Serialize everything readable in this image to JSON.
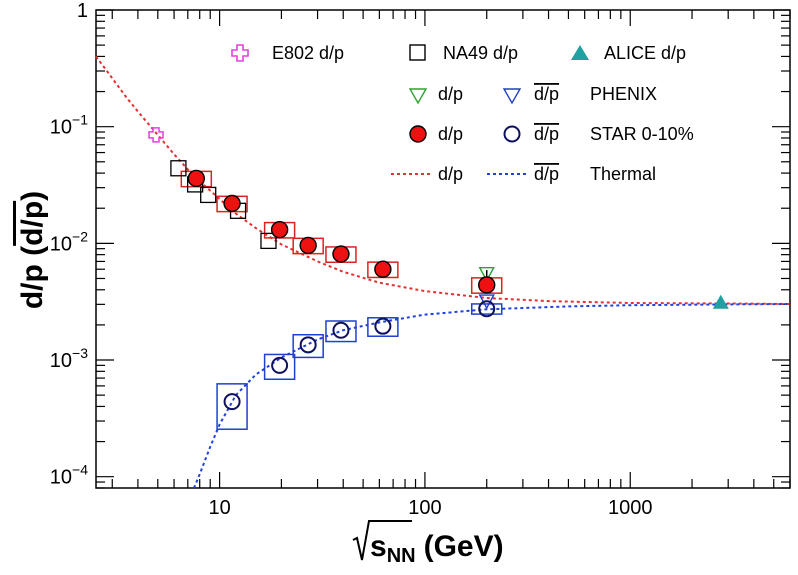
{
  "chart_data": {
    "type": "scatter",
    "xlabel_text": "s",
    "xlabel_sub": "NN",
    "xlabel_unit": "(GeV)",
    "ylabel_main": "d/p (",
    "ylabel_bar": "d/p",
    "ylabel_close": ")",
    "x_scale": "log",
    "y_scale": "log",
    "xlim": [
      2.5,
      6000
    ],
    "ylim": [
      8e-05,
      1
    ],
    "x_ticks": [
      {
        "value": 10,
        "label": "10"
      },
      {
        "value": 100,
        "label": "100"
      },
      {
        "value": 1000,
        "label": "1000"
      }
    ],
    "y_ticks": [
      {
        "value": 1,
        "mantissa": "1",
        "exp": ""
      },
      {
        "value": 0.1,
        "mantissa": "10",
        "exp": "−1"
      },
      {
        "value": 0.01,
        "mantissa": "10",
        "exp": "−2"
      },
      {
        "value": 0.001,
        "mantissa": "10",
        "exp": "−3"
      },
      {
        "value": 0.0001,
        "mantissa": "10",
        "exp": "−4"
      }
    ],
    "grid": false,
    "legend_position": "top-right",
    "series": [
      {
        "name": "E802 d/p",
        "marker": "cross-open",
        "color": "#e040e0",
        "points": [
          {
            "x": 4.9,
            "y": 0.085
          }
        ]
      },
      {
        "name": "NA49 d/p",
        "marker": "square-open",
        "color": "#000000",
        "points": [
          {
            "x": 6.3,
            "y": 0.044
          },
          {
            "x": 7.6,
            "y": 0.032
          },
          {
            "x": 8.8,
            "y": 0.026
          },
          {
            "x": 12.3,
            "y": 0.019
          },
          {
            "x": 17.3,
            "y": 0.0105
          }
        ]
      },
      {
        "name": "ALICE d/p",
        "marker": "triangle-up-filled",
        "color": "#20a0a0",
        "points": [
          {
            "x": 2760,
            "y": 0.0031,
            "yerr": 0.0003
          }
        ]
      },
      {
        "name": "PHENIX d/p",
        "marker": "triangle-down-open",
        "color": "#30a030",
        "points": [
          {
            "x": 200,
            "y": 0.0055,
            "yerr": 0.0004
          }
        ]
      },
      {
        "name": "PHENIX d̄/p̄",
        "marker": "triangle-down-open",
        "color": "#2040c0",
        "points": [
          {
            "x": 200,
            "y": 0.0032
          }
        ]
      },
      {
        "name": "STAR 0-10% d/p",
        "marker": "circle-filled",
        "color": "#ee1111",
        "box_color": "#dd2222",
        "points": [
          {
            "x": 7.7,
            "y": 0.036,
            "sys": 0.15
          },
          {
            "x": 11.5,
            "y": 0.022,
            "sys": 0.15
          },
          {
            "x": 19.6,
            "y": 0.0131,
            "sys": 0.15
          },
          {
            "x": 27,
            "y": 0.0096,
            "sys": 0.15
          },
          {
            "x": 39,
            "y": 0.0081,
            "sys": 0.15
          },
          {
            "x": 62.4,
            "y": 0.006,
            "sys": 0.15
          },
          {
            "x": 200,
            "y": 0.0044,
            "sys": 0.15
          }
        ]
      },
      {
        "name": "STAR 0-10% d̄/p̄",
        "marker": "circle-open",
        "color": "#101060",
        "box_color": "#2040d0",
        "points": [
          {
            "x": 11.5,
            "y": 0.00044,
            "sys": 0.42
          },
          {
            "x": 19.6,
            "y": 0.0009,
            "sys": 0.24
          },
          {
            "x": 27,
            "y": 0.00135,
            "sys": 0.22
          },
          {
            "x": 39,
            "y": 0.0018,
            "sys": 0.2
          },
          {
            "x": 62.4,
            "y": 0.00195,
            "sys": 0.18
          },
          {
            "x": 200,
            "y": 0.00275,
            "sys": 0.1
          }
        ]
      },
      {
        "name": "Thermal d/p",
        "type": "line",
        "color": "#e53030",
        "points": [
          {
            "x": 2.5,
            "y": 0.4
          },
          {
            "x": 3,
            "y": 0.26
          },
          {
            "x": 3.5,
            "y": 0.18
          },
          {
            "x": 4,
            "y": 0.135
          },
          {
            "x": 5,
            "y": 0.085
          },
          {
            "x": 6,
            "y": 0.058
          },
          {
            "x": 7,
            "y": 0.043
          },
          {
            "x": 8,
            "y": 0.034
          },
          {
            "x": 10,
            "y": 0.024
          },
          {
            "x": 12,
            "y": 0.018
          },
          {
            "x": 15,
            "y": 0.0135
          },
          {
            "x": 20,
            "y": 0.0098
          },
          {
            "x": 30,
            "y": 0.007
          },
          {
            "x": 40,
            "y": 0.0057
          },
          {
            "x": 60,
            "y": 0.0046
          },
          {
            "x": 100,
            "y": 0.0039
          },
          {
            "x": 200,
            "y": 0.0034
          },
          {
            "x": 400,
            "y": 0.0032
          },
          {
            "x": 1000,
            "y": 0.00308
          },
          {
            "x": 3000,
            "y": 0.00305
          },
          {
            "x": 6000,
            "y": 0.00302
          }
        ]
      },
      {
        "name": "Thermal d̄/p̄",
        "type": "line",
        "color": "#2040e0",
        "points": [
          {
            "x": 7.5,
            "y": 8e-05
          },
          {
            "x": 8,
            "y": 0.000105
          },
          {
            "x": 9,
            "y": 0.00018
          },
          {
            "x": 10,
            "y": 0.00028
          },
          {
            "x": 12,
            "y": 0.0005
          },
          {
            "x": 15,
            "y": 0.00075
          },
          {
            "x": 20,
            "y": 0.00105
          },
          {
            "x": 30,
            "y": 0.0015
          },
          {
            "x": 40,
            "y": 0.0018
          },
          {
            "x": 60,
            "y": 0.0021
          },
          {
            "x": 100,
            "y": 0.00245
          },
          {
            "x": 200,
            "y": 0.00272
          },
          {
            "x": 500,
            "y": 0.00288
          },
          {
            "x": 1000,
            "y": 0.00295
          },
          {
            "x": 3000,
            "y": 0.003
          },
          {
            "x": 6000,
            "y": 0.00302
          }
        ]
      }
    ],
    "legend": {
      "row1": {
        "e802": "E802 d/p",
        "na49": "NA49 d/p",
        "alice": "ALICE d/p"
      },
      "row2": {
        "d": "d/p",
        "dbar": "d/p",
        "group": "PHENIX"
      },
      "row3": {
        "d": "d/p",
        "dbar": "d/p",
        "group": "STAR 0-10%"
      },
      "row4": {
        "d": "d/p",
        "dbar": "d/p",
        "group": "Thermal"
      }
    }
  }
}
